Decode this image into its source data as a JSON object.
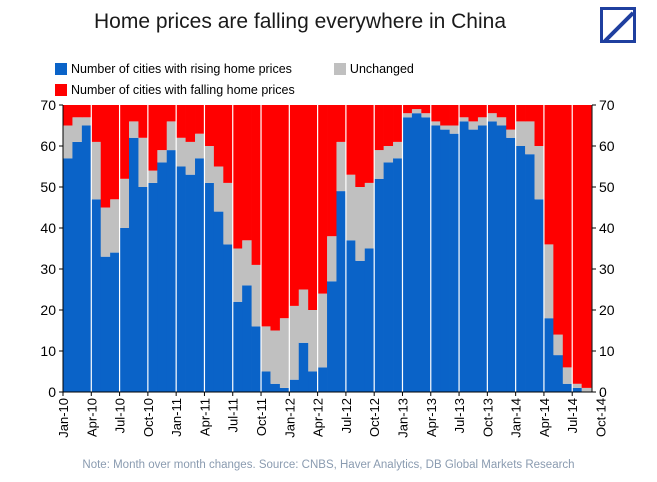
{
  "chart_data": {
    "type": "bar",
    "stacked": true,
    "title": "Home prices are falling everywhere in China",
    "note": "Note: Month over month changes. Source: CNBS, Haver Analytics, DB Global Markets Research",
    "x_tick_labels": [
      "Jan-10",
      "Apr-10",
      "Jul-10",
      "Oct-10",
      "Jan-11",
      "Apr-11",
      "Jul-11",
      "Oct-11",
      "Jan-12",
      "Apr-12",
      "Jul-12",
      "Oct-12",
      "Jan-13",
      "Apr-13",
      "Jul-13",
      "Oct-13",
      "Jan-14",
      "Apr-14",
      "Jul-14",
      "Oct-14"
    ],
    "ylim": [
      0,
      70
    ],
    "y_ticks": [
      0,
      10,
      20,
      30,
      40,
      50,
      60,
      70
    ],
    "legend_position": "top-left",
    "grid": false,
    "colors": {
      "rising": "#0a63c8",
      "unchanged": "#c0c0c0",
      "falling": "#ff0000"
    },
    "series": [
      {
        "name": "Number of cities with rising home prices",
        "values": [
          57,
          61,
          65,
          47,
          33,
          34,
          40,
          62,
          50,
          51,
          56,
          59,
          55,
          53,
          57,
          51,
          44,
          36,
          22,
          26,
          16,
          5,
          2,
          1,
          3,
          12,
          5,
          6,
          27,
          49,
          37,
          32,
          35,
          52,
          56,
          57,
          67,
          68,
          67,
          65,
          64,
          63,
          66,
          64,
          65,
          66,
          65,
          62,
          60,
          58,
          47,
          18,
          9,
          2,
          1,
          0
        ]
      },
      {
        "name": "Unchanged",
        "values": [
          8,
          6,
          2,
          14,
          12,
          13,
          12,
          4,
          12,
          3,
          3,
          7,
          7,
          8,
          6,
          9,
          11,
          15,
          13,
          11,
          15,
          11,
          13,
          17,
          18,
          13,
          15,
          18,
          11,
          12,
          16,
          18,
          16,
          7,
          4,
          4,
          1,
          1,
          1,
          1,
          1,
          2,
          1,
          2,
          2,
          2,
          2,
          2,
          6,
          8,
          13,
          18,
          5,
          4,
          1,
          1
        ]
      },
      {
        "name": "Number of cities with falling home prices",
        "values": [
          5,
          3,
          3,
          9,
          25,
          23,
          18,
          4,
          8,
          16,
          11,
          4,
          8,
          9,
          7,
          10,
          15,
          19,
          35,
          33,
          39,
          54,
          55,
          52,
          49,
          45,
          50,
          46,
          32,
          9,
          17,
          20,
          19,
          11,
          10,
          9,
          2,
          1,
          2,
          4,
          5,
          5,
          3,
          4,
          3,
          2,
          3,
          6,
          4,
          4,
          10,
          34,
          56,
          64,
          68,
          69
        ]
      }
    ]
  }
}
